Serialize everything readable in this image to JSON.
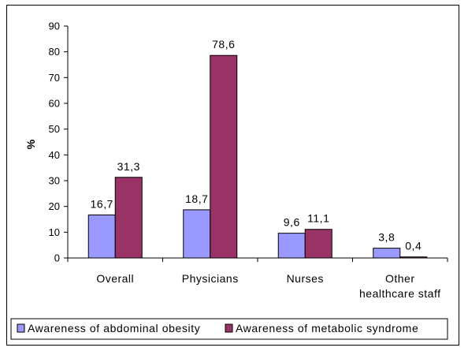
{
  "chart_data": {
    "type": "bar",
    "title": "",
    "xlabel": "",
    "ylabel": "%",
    "ylim": [
      0,
      90
    ],
    "yticks": [
      0,
      10,
      20,
      30,
      40,
      50,
      60,
      70,
      80,
      90
    ],
    "grid": false,
    "legend_position": "bottom",
    "categories": [
      [
        "Overall"
      ],
      [
        "Physicians"
      ],
      [
        "Nurses"
      ],
      [
        "Other",
        "healthcare staff"
      ]
    ],
    "series": [
      {
        "name": "Awareness of abdominal obesity",
        "color": "#9999ff",
        "values": [
          16.7,
          18.7,
          9.6,
          3.8
        ],
        "labels": [
          "16,7",
          "18,7",
          "9,6",
          "3,8"
        ]
      },
      {
        "name": "Awareness of metabolic syndrome",
        "color": "#993366",
        "values": [
          31.3,
          78.6,
          11.1,
          0.4
        ],
        "labels": [
          "31,3",
          "78,6",
          "11,1",
          "0,4"
        ]
      }
    ]
  }
}
